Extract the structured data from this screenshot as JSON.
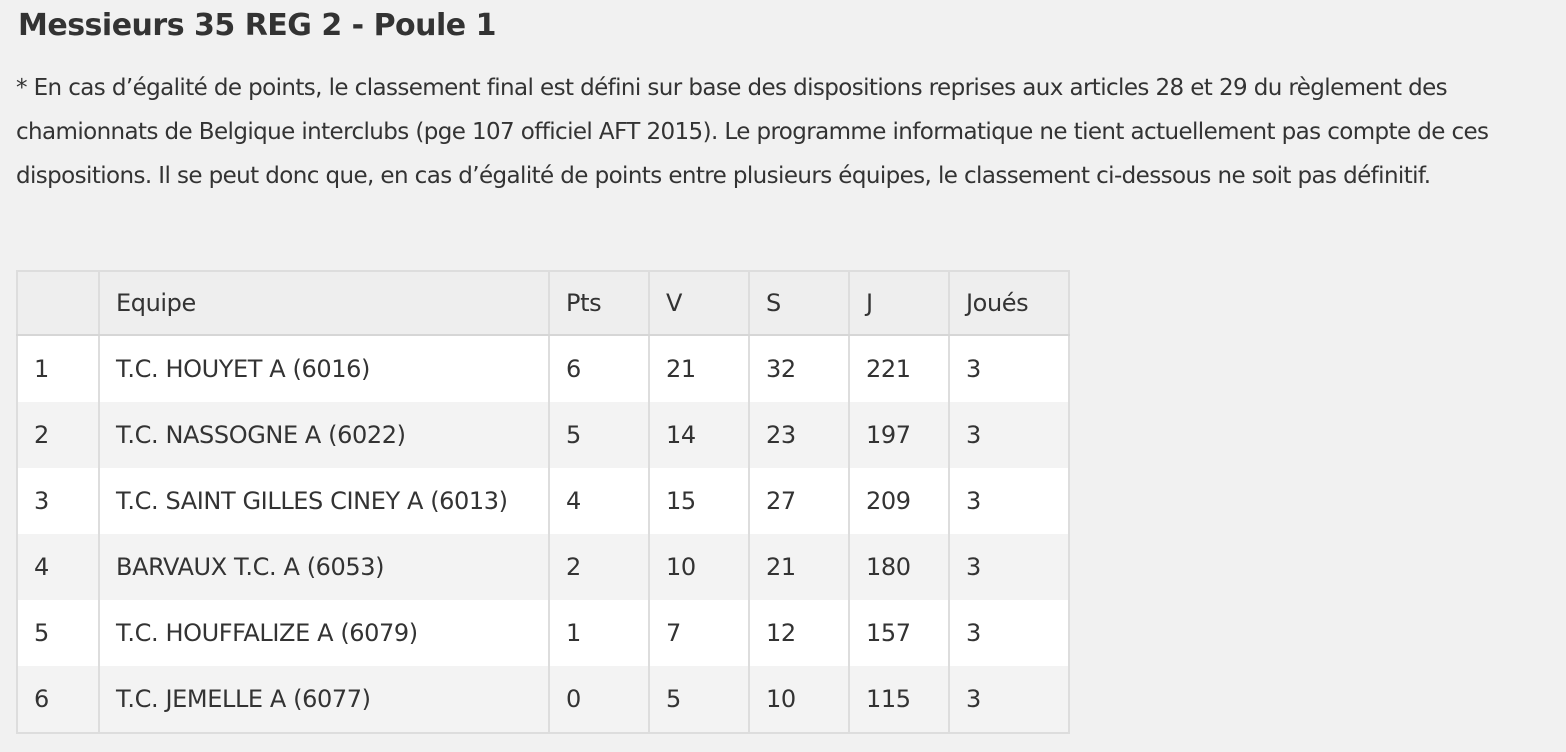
{
  "page": {
    "title": "Messieurs 35 REG 2 - Poule 1",
    "note": "* En cas d’égalité de points, le classement final est défini sur base des dispositions reprises aux articles 28 et 29 du règlement des chamionnats de Belgique interclubs (pge 107 officiel AFT 2015). Le programme informatique ne tient actuellement pas compte de ces dispositions. Il se peut donc que, en cas d’égalité de points entre plusieurs équipes, le classement ci-dessous ne soit pas définitif."
  },
  "table": {
    "headers": {
      "rank": "",
      "team": "Equipe",
      "points": "Pts",
      "v": "V",
      "s": "S",
      "j": "J",
      "played": "Joués"
    },
    "rows": [
      {
        "rank": "1",
        "team": "T.C. HOUYET A (6016)",
        "points": "6",
        "v": "21",
        "s": "32",
        "j": "221",
        "played": "3"
      },
      {
        "rank": "2",
        "team": "T.C. NASSOGNE A (6022)",
        "points": "5",
        "v": "14",
        "s": "23",
        "j": "197",
        "played": "3"
      },
      {
        "rank": "3",
        "team": "T.C. SAINT GILLES CINEY A (6013)",
        "points": "4",
        "v": "15",
        "s": "27",
        "j": "209",
        "played": "3"
      },
      {
        "rank": "4",
        "team": "BARVAUX T.C. A (6053)",
        "points": "2",
        "v": "10",
        "s": "21",
        "j": "180",
        "played": "3"
      },
      {
        "rank": "5",
        "team": "T.C. HOUFFALIZE A (6079)",
        "points": "1",
        "v": "7",
        "s": "12",
        "j": "157",
        "played": "3"
      },
      {
        "rank": "6",
        "team": "T.C. JEMELLE A (6077)",
        "points": "0",
        "v": "5",
        "s": "10",
        "j": "115",
        "played": "3"
      }
    ]
  },
  "colors": {
    "background": "#f1f1f1",
    "text": "#333333",
    "border": "#dddddd",
    "header_bg": "#eeeeee",
    "row_odd": "#ffffff",
    "row_even": "#f3f3f3"
  }
}
